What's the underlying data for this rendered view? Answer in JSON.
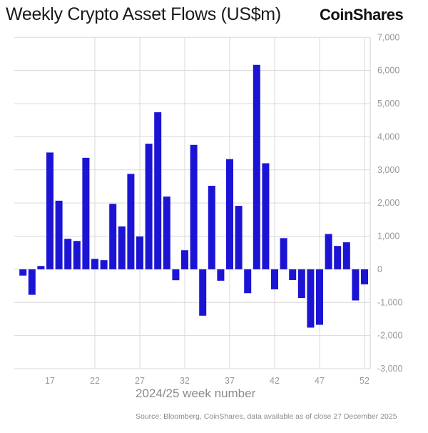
{
  "chart_data": {
    "type": "bar",
    "title": "Weekly Crypto Asset Flows (US$m)",
    "brand": "CoinShares",
    "xlabel": "2024/25 week number",
    "ylabel": "",
    "source": "Source: Bloomberg, CoinShares, data available as of close 27 December 2025",
    "x": [
      14,
      15,
      16,
      17,
      18,
      19,
      20,
      21,
      22,
      23,
      24,
      25,
      26,
      27,
      28,
      29,
      30,
      31,
      32,
      33,
      34,
      35,
      36,
      37,
      38,
      39,
      40,
      41,
      42,
      43,
      44,
      45,
      46,
      47,
      48,
      49,
      50,
      51,
      52
    ],
    "values": [
      -190,
      -770,
      100,
      3525,
      2070,
      920,
      855,
      3365,
      315,
      275,
      1975,
      1295,
      2880,
      990,
      3790,
      4740,
      2195,
      -330,
      575,
      3755,
      -1400,
      2520,
      -345,
      3325,
      1915,
      -720,
      6170,
      3200,
      -605,
      940,
      -325,
      -865,
      -1760,
      -1675,
      1065,
      705,
      815,
      -940,
      -455
    ],
    "xticks": [
      "17",
      "22",
      "27",
      "32",
      "37",
      "42",
      "47",
      "52"
    ],
    "yticks": [
      "7,000",
      "6,000",
      "5,000",
      "4,000",
      "3,000",
      "2,000",
      "1,000",
      "0",
      "-1,000",
      "-2,000",
      "-3,000"
    ],
    "ylim": [
      -3000,
      7000
    ],
    "xlim": [
      13,
      52.6
    ],
    "grid": true,
    "bar_color": "#1c14d4"
  }
}
